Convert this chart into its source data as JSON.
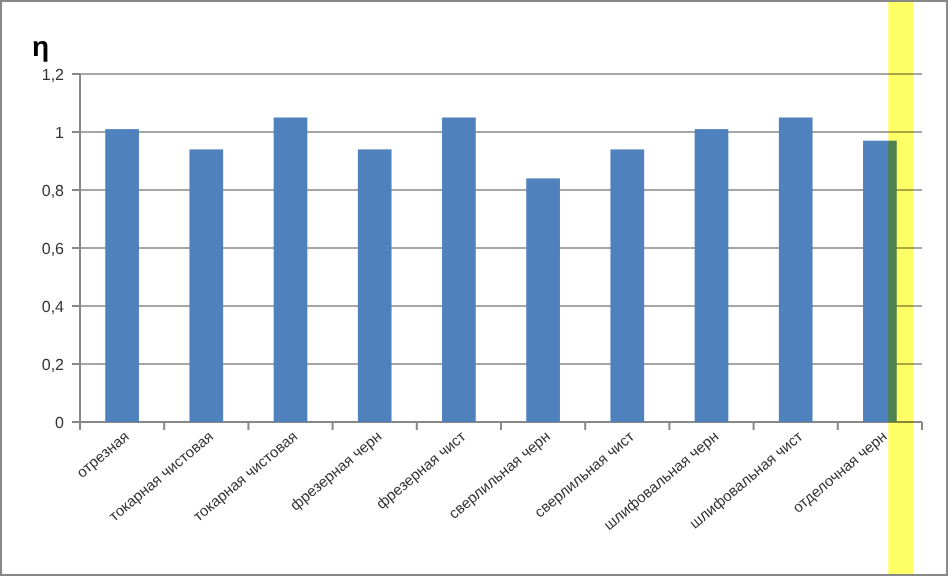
{
  "chart_data": {
    "type": "bar",
    "ylabel": "η",
    "categories": [
      "отрезная",
      "токарная чистовая",
      "токарная чистовая",
      "фрезерная черн",
      "фрезерная чист",
      "сверлильная черн",
      "сверлильная чист",
      "шлифовальная черн",
      "шлифовальная чист",
      "отделочная черн"
    ],
    "values": [
      1.01,
      0.94,
      1.05,
      0.94,
      1.05,
      0.84,
      0.94,
      1.01,
      1.05,
      0.97
    ],
    "color": "#4f81bd",
    "ylim": [
      0,
      1.2
    ],
    "yticks": [
      0,
      {
        "value": 0.2,
        "label": "0,2"
      },
      {
        "value": 0.4,
        "label": "0,4"
      },
      {
        "value": 0.6,
        "label": "0,6"
      },
      {
        "value": 0.8,
        "label": "0,8"
      },
      1,
      {
        "value": 1.2,
        "label": "1,2"
      }
    ],
    "grid": "y",
    "bands": [
      {
        "axis": "x",
        "from": "отделочная черн",
        "to": "отделочная черн",
        "color": "#ffff66"
      }
    ]
  }
}
